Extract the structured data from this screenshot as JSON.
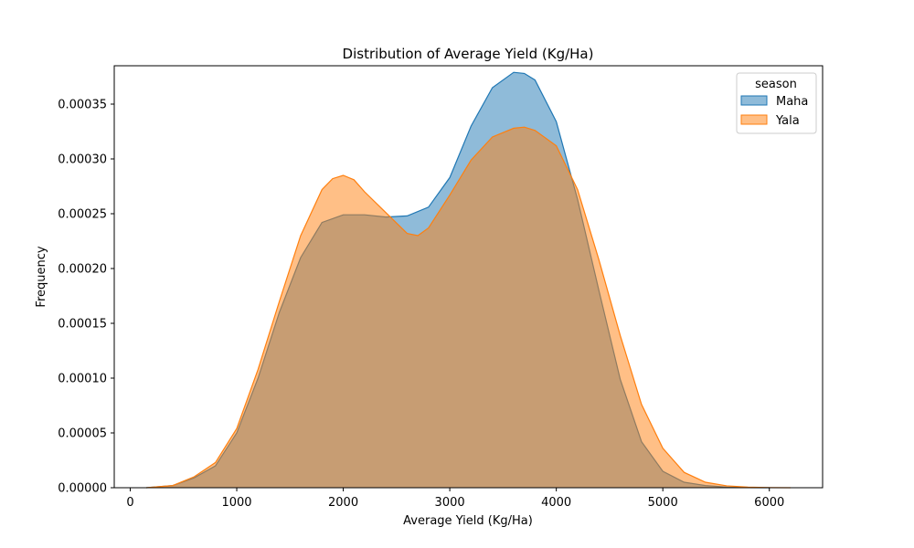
{
  "chart_data": {
    "type": "area",
    "title": "Distribution of Average Yield (Kg/Ha)",
    "xlabel": "Average Yield (Kg/Ha)",
    "ylabel": "Frequency",
    "xlim": [
      -150,
      6500
    ],
    "ylim": [
      0,
      0.000385
    ],
    "xticks": [
      0,
      1000,
      2000,
      3000,
      4000,
      5000,
      6000
    ],
    "xtick_labels": [
      "0",
      "1000",
      "2000",
      "3000",
      "4000",
      "5000",
      "6000"
    ],
    "yticks": [
      0,
      5e-05,
      0.0001,
      0.00015,
      0.0002,
      0.00025,
      0.0003,
      0.00035
    ],
    "ytick_labels": [
      "0.00000",
      "0.00005",
      "0.00010",
      "0.00015",
      "0.00020",
      "0.00025",
      "0.00030",
      "0.00035"
    ],
    "grid": false,
    "legend": {
      "title": "season",
      "placement": "top-right"
    },
    "series": [
      {
        "name": "Maha",
        "color": "#1f77b4",
        "x": [
          150,
          400,
          600,
          800,
          1000,
          1200,
          1400,
          1600,
          1800,
          2000,
          2200,
          2400,
          2600,
          2800,
          3000,
          3200,
          3400,
          3600,
          3700,
          3800,
          4000,
          4200,
          4400,
          4600,
          4800,
          5000,
          5200,
          5400,
          5600,
          5800,
          6000
        ],
        "y": [
          0,
          2e-06,
          9e-06,
          2e-05,
          5e-05,
          0.0001,
          0.00016,
          0.00021,
          0.000242,
          0.000249,
          0.000249,
          0.000247,
          0.000248,
          0.000256,
          0.000283,
          0.00033,
          0.000365,
          0.000379,
          0.000378,
          0.000372,
          0.000334,
          0.000263,
          0.00018,
          9.9e-05,
          4.2e-05,
          1.5e-05,
          5e-06,
          2e-06,
          5e-07,
          1e-07,
          0
        ]
      },
      {
        "name": "Yala",
        "color": "#ff7f0e",
        "x": [
          150,
          400,
          600,
          800,
          1000,
          1200,
          1400,
          1600,
          1800,
          1900,
          2000,
          2100,
          2200,
          2400,
          2600,
          2700,
          2800,
          3000,
          3200,
          3400,
          3600,
          3700,
          3800,
          4000,
          4200,
          4400,
          4600,
          4800,
          5000,
          5200,
          5400,
          5600,
          5800,
          6000,
          6200
        ],
        "y": [
          0,
          2e-06,
          1e-05,
          2.3e-05,
          5.4e-05,
          0.000108,
          0.00017,
          0.00023,
          0.000272,
          0.000282,
          0.000285,
          0.000281,
          0.00027,
          0.000251,
          0.000232,
          0.00023,
          0.000237,
          0.000267,
          0.000299,
          0.00032,
          0.000328,
          0.000329,
          0.000326,
          0.000312,
          0.000272,
          0.000208,
          0.000139,
          7.6e-05,
          3.6e-05,
          1.4e-05,
          5e-06,
          1.7e-06,
          5e-07,
          1e-07,
          0
        ]
      }
    ]
  }
}
